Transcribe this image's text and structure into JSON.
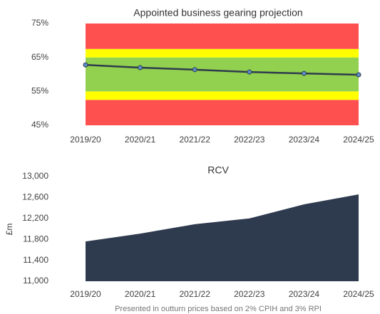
{
  "chart_data": [
    {
      "type": "line",
      "title": "Appointed business gearing projection",
      "categories": [
        "2019/20",
        "2020/21",
        "2021/22",
        "2022/23",
        "2023/24",
        "2024/25"
      ],
      "values": [
        62.8,
        62.0,
        61.4,
        60.7,
        60.3,
        59.9
      ],
      "color": "#2f3b4c",
      "marker_color": "#5b8fc9",
      "ylim": [
        45,
        75
      ],
      "yticks": [
        {
          "value": 45,
          "label": "45%"
        },
        {
          "value": 55,
          "label": "55%"
        },
        {
          "value": 65,
          "label": "65%"
        },
        {
          "value": 75,
          "label": "75%"
        }
      ],
      "bands": [
        {
          "from": 45,
          "to": 52.5,
          "color": "#ff5050"
        },
        {
          "from": 52.5,
          "to": 55,
          "color": "#ffff00"
        },
        {
          "from": 55,
          "to": 65,
          "color": "#92d050"
        },
        {
          "from": 65,
          "to": 67.5,
          "color": "#ffff00"
        },
        {
          "from": 67.5,
          "to": 75,
          "color": "#ff5050"
        }
      ]
    },
    {
      "type": "area",
      "title": "RCV",
      "ylabel": "£m",
      "categories": [
        "2019/20",
        "2020/21",
        "2021/22",
        "2022/23",
        "2023/24",
        "2024/25"
      ],
      "values": [
        11760,
        11910,
        12090,
        12200,
        12470,
        12660
      ],
      "color": "#2e3a4e",
      "ylim": [
        11000,
        13000
      ],
      "yticks": [
        {
          "value": 11000,
          "label": "11,000"
        },
        {
          "value": 11400,
          "label": "11,400"
        },
        {
          "value": 11800,
          "label": "11,800"
        },
        {
          "value": 12200,
          "label": "12,200"
        },
        {
          "value": 12600,
          "label": "12,600"
        },
        {
          "value": 13000,
          "label": "13,000"
        }
      ],
      "note": "Presented in outturn prices based on 2% CPIH and 3% RPI"
    }
  ]
}
